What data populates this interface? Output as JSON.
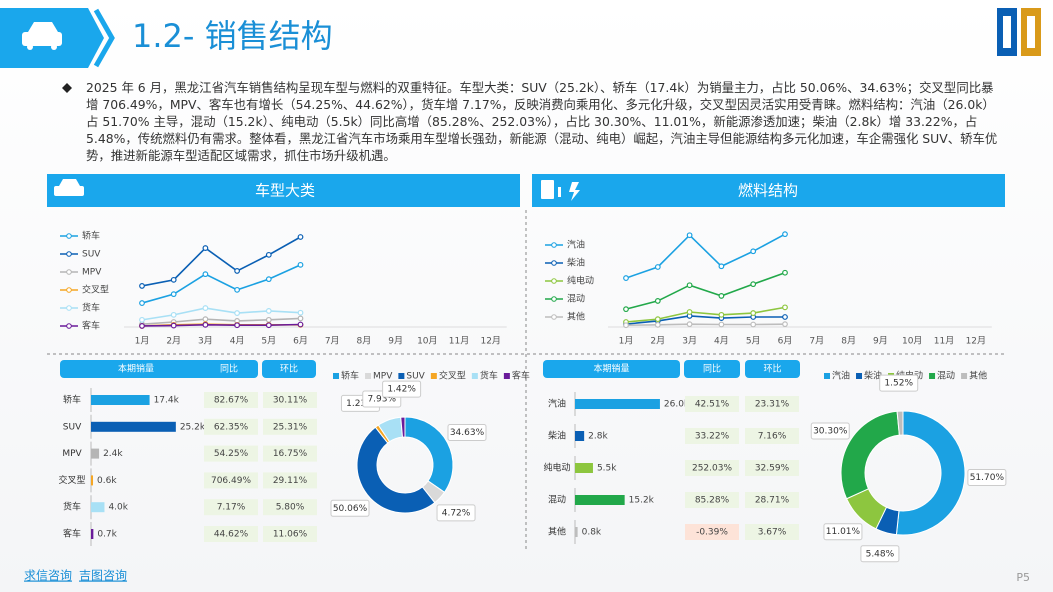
{
  "header": {
    "title": "1.2- 销售结构"
  },
  "summary": "2025 年 6 月，黑龙江省汽车销售结构呈现车型与燃料的双重特征。车型大类：SUV（25.2k）、轿车（17.4k）为销量主力，占比 50.06%、34.63%；交叉型同比暴增 706.49%，MPV、客车也有增长（54.25%、44.62%），货车增 7.17%，反映消费向乘用化、多元化升级，交叉型因灵活实用受青睐。燃料结构：汽油（26.0k）占 51.70% 主导，混动（15.2k）、纯电动（5.5k）同比高增（85.28%、252.03%），占比 30.30%、11.01%，新能源渗透加速；柴油（2.8k）增 33.22%，占 5.48%，传统燃料仍有需求。整体看，黑龙江省汽车市场乘用车型增长强劲，新能源（混动、纯电）崛起，汽油主导但能源结构多元化加速，车企需强化 SUV、轿车优势，推进新能源车型适配区域需求，抓住市场升级机遇。",
  "panels": [
    "车型大类",
    "燃料结构"
  ],
  "footer": {
    "brands": [
      "求信咨询",
      "吉图咨询"
    ],
    "page": "P5"
  },
  "chart_data": [
    {
      "type": "line",
      "categories": [
        "1月",
        "2月",
        "3月",
        "4月",
        "5月",
        "6月",
        "7月",
        "8月",
        "9月",
        "10月",
        "11月",
        "12月"
      ],
      "ylim": [
        0,
        28
      ],
      "series": [
        {
          "name": "轿车",
          "color": "#1ba1e2",
          "values": [
            6.7,
            9.2,
            14.8,
            10.4,
            13.4,
            17.4,
            null,
            null,
            null,
            null,
            null,
            null
          ]
        },
        {
          "name": "SUV",
          "color": "#0a5fb4",
          "values": [
            11.5,
            13.2,
            22.1,
            15.7,
            20.2,
            25.2,
            null,
            null,
            null,
            null,
            null,
            null
          ]
        },
        {
          "name": "MPV",
          "color": "#b5b5b5",
          "values": [
            0.8,
            1.4,
            2.2,
            1.7,
            2.0,
            2.4,
            null,
            null,
            null,
            null,
            null,
            null
          ]
        },
        {
          "name": "交叉型",
          "color": "#f5a623",
          "values": [
            0.3,
            0.6,
            0.8,
            0.6,
            0.6,
            0.6,
            null,
            null,
            null,
            null,
            null,
            null
          ]
        },
        {
          "name": "货车",
          "color": "#a8e0f5",
          "values": [
            2.0,
            3.4,
            5.3,
            3.9,
            4.5,
            4.0,
            null,
            null,
            null,
            null,
            null,
            null
          ]
        },
        {
          "name": "客车",
          "color": "#6a1b9a",
          "values": [
            0.3,
            0.4,
            0.6,
            0.5,
            0.5,
            0.7,
            null,
            null,
            null,
            null,
            null,
            null
          ]
        }
      ]
    },
    {
      "type": "bar",
      "columns": [
        "本期销量",
        "同比",
        "环比"
      ],
      "categories": [
        "轿车",
        "SUV",
        "MPV",
        "交叉型",
        "货车",
        "客车"
      ],
      "values": [
        17.4,
        25.2,
        2.4,
        0.6,
        4.0,
        0.7
      ],
      "value_labels": [
        "17.4k",
        "25.2k",
        "2.4k",
        "0.6k",
        "4.0k",
        "0.7k"
      ],
      "colors": [
        "#1ba1e2",
        "#0a5fb4",
        "#b5b5b5",
        "#f5a623",
        "#a8e0f5",
        "#6a1b9a"
      ],
      "xlim": [
        0,
        30
      ],
      "yoy": [
        "82.67%",
        "62.35%",
        "54.25%",
        "706.49%",
        "7.17%",
        "44.62%"
      ],
      "mom": [
        "30.11%",
        "25.31%",
        "16.75%",
        "29.11%",
        "5.80%",
        "11.06%"
      ]
    },
    {
      "type": "donut",
      "categories": [
        "轿车",
        "MPV",
        "SUV",
        "交叉型",
        "货车",
        "客车"
      ],
      "values": [
        34.63,
        4.72,
        50.06,
        1.23,
        7.93,
        1.42
      ],
      "value_labels": [
        "34.63%",
        "4.72%",
        "50.06%",
        "1.23%",
        "7.93%",
        "1.42%"
      ],
      "colors": [
        "#1ba1e2",
        "#d9d9d9",
        "#0a5fb4",
        "#f5a623",
        "#a8e0f5",
        "#6a1b9a"
      ],
      "legend": [
        "轿车",
        "MPV",
        "SUV",
        "交叉型",
        "货车",
        "客车"
      ]
    },
    {
      "type": "line",
      "categories": [
        "1月",
        "2月",
        "3月",
        "4月",
        "5月",
        "6月",
        "7月",
        "8月",
        "9月",
        "10月",
        "11月",
        "12月"
      ],
      "ylim": [
        0,
        28
      ],
      "series": [
        {
          "name": "汽油",
          "color": "#1ba1e2",
          "values": [
            13.7,
            16.8,
            25.7,
            17.0,
            21.2,
            26.0,
            null,
            null,
            null,
            null,
            null,
            null
          ]
        },
        {
          "name": "柴油",
          "color": "#0a5fb4",
          "values": [
            0.8,
            1.7,
            3.1,
            2.5,
            2.8,
            2.8,
            null,
            null,
            null,
            null,
            null,
            null
          ]
        },
        {
          "name": "纯电动",
          "color": "#8dc63f",
          "values": [
            1.4,
            2.2,
            4.2,
            3.4,
            3.9,
            5.5,
            null,
            null,
            null,
            null,
            null,
            null
          ]
        },
        {
          "name": "混动",
          "color": "#22a84a",
          "values": [
            5.0,
            7.3,
            11.7,
            8.7,
            12.0,
            15.2,
            null,
            null,
            null,
            null,
            null,
            null
          ]
        },
        {
          "name": "其他",
          "color": "#bdbdbd",
          "values": [
            0.5,
            0.6,
            0.8,
            0.7,
            0.7,
            0.8,
            null,
            null,
            null,
            null,
            null,
            null
          ]
        }
      ]
    },
    {
      "type": "bar",
      "columns": [
        "本期销量",
        "同比",
        "环比"
      ],
      "categories": [
        "汽油",
        "柴油",
        "纯电动",
        "混动",
        "其他"
      ],
      "values": [
        26.0,
        2.8,
        5.5,
        15.2,
        0.8
      ],
      "value_labels": [
        "26.0k",
        "2.8k",
        "5.5k",
        "15.2k",
        "0.8k"
      ],
      "colors": [
        "#1ba1e2",
        "#0a5fb4",
        "#8dc63f",
        "#22a84a",
        "#bdbdbd"
      ],
      "xlim": [
        0,
        30
      ],
      "yoy": [
        "42.51%",
        "33.22%",
        "252.03%",
        "85.28%",
        "-0.39%"
      ],
      "mom": [
        "23.31%",
        "7.16%",
        "32.59%",
        "28.71%",
        "3.67%"
      ]
    },
    {
      "type": "donut",
      "categories": [
        "汽油",
        "柴油",
        "纯电动",
        "混动",
        "其他"
      ],
      "values": [
        51.7,
        5.48,
        11.01,
        30.3,
        1.52
      ],
      "value_labels": [
        "51.70%",
        "5.48%",
        "11.01%",
        "30.30%",
        "1.52%"
      ],
      "colors": [
        "#1ba1e2",
        "#0a5fb4",
        "#8dc63f",
        "#22a84a",
        "#bdbdbd"
      ],
      "legend": [
        "汽油",
        "柴油",
        "纯电动",
        "混动",
        "其他"
      ]
    }
  ]
}
